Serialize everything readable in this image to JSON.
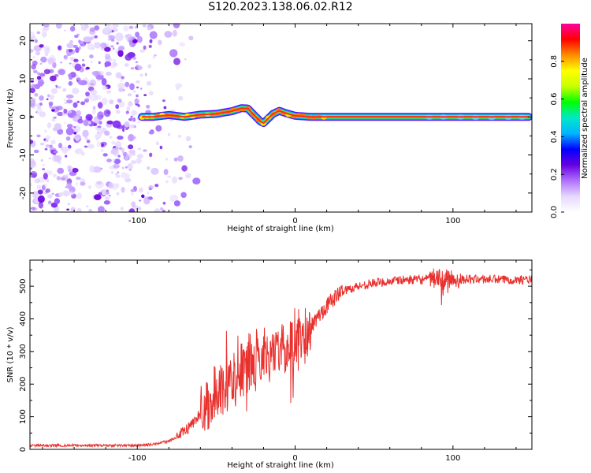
{
  "figure": {
    "title": "S120.2023.138.06.02.R12"
  },
  "chart_data": [
    {
      "type": "heatmap",
      "panel": "top",
      "xlabel": "Height of straight line (km)",
      "ylabel": "Frequency (Hz)",
      "xlim": [
        -168,
        150
      ],
      "ylim": [
        -25,
        24.5
      ],
      "xticks": [
        -100,
        0,
        100
      ],
      "yticks": [
        -20,
        -10,
        0,
        10,
        20
      ],
      "grid": false,
      "colorbar": {
        "label": "Normalized spectral amplitude",
        "range": [
          0,
          1
        ],
        "ticks": [
          "0.0",
          "0.2",
          "0.4",
          "0.6",
          "0.8"
        ],
        "colors": [
          "#ffffff",
          "#e6d8ff",
          "#b070ff",
          "#6600e0",
          "#0000ff",
          "#00b4ff",
          "#00e8c8",
          "#00ff00",
          "#c8ff00",
          "#ffff00",
          "#ff8c00",
          "#ff0000",
          "#ff00a0"
        ]
      },
      "ridge": {
        "description_points_x": [
          -97,
          -90,
          -80,
          -70,
          -60,
          -50,
          -40,
          -34,
          -30,
          -26,
          -22,
          -20,
          -18,
          -14,
          -10,
          -6,
          0,
          10,
          20,
          60,
          100,
          148
        ],
        "frequency_hz": [
          0,
          0,
          0.5,
          0,
          0.6,
          0.8,
          1.5,
          2.3,
          2.2,
          0.5,
          -1.2,
          -1.6,
          -0.8,
          0.8,
          1.6,
          1.0,
          0.3,
          0,
          0,
          0,
          0,
          0
        ]
      },
      "noise_region_x": [
        -168,
        -75
      ]
    },
    {
      "type": "line",
      "panel": "bottom",
      "xlabel": "Height of straight line (km)",
      "ylabel": "SNR (10 * v/v)",
      "xlim": [
        -168,
        150
      ],
      "ylim": [
        0,
        580
      ],
      "xticks": [
        -100,
        0,
        100
      ],
      "yticks": [
        0,
        100,
        200,
        300,
        400,
        500
      ],
      "grid": false,
      "color": "#e8312e",
      "series": [
        {
          "name": "",
          "x": [
            -168,
            -150,
            -130,
            -110,
            -100,
            -90,
            -80,
            -75,
            -70,
            -65,
            -60,
            -55,
            -50,
            -45,
            -40,
            -35,
            -30,
            -25,
            -20,
            -15,
            -10,
            -5,
            0,
            5,
            10,
            15,
            20,
            25,
            30,
            40,
            50,
            60,
            70,
            80,
            90,
            95,
            100,
            110,
            120,
            130,
            140,
            150
          ],
          "y": [
            12,
            12,
            12,
            12,
            12,
            15,
            25,
            38,
            55,
            80,
            110,
            140,
            165,
            190,
            215,
            235,
            255,
            270,
            285,
            300,
            305,
            315,
            320,
            345,
            375,
            410,
            440,
            465,
            485,
            500,
            510,
            515,
            520,
            520,
            525,
            520,
            520,
            522,
            522,
            520,
            520,
            520
          ]
        }
      ]
    }
  ]
}
